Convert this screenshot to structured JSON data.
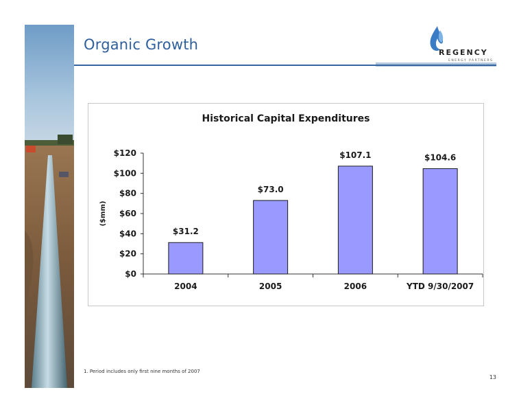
{
  "slide": {
    "title": "Organic Growth",
    "footnote": "1.  Period includes only first nine months of 2007",
    "page_number": "13"
  },
  "logo": {
    "name": "REGENCY",
    "tagline": "ENERGY PARTNERS"
  },
  "colors": {
    "title": "#2e5f9e",
    "rule": "#34659f",
    "bar_fill": "#9999ff",
    "bar_stroke": "#1a1a1a"
  },
  "chart_data": {
    "type": "bar",
    "title": "Historical Capital Expenditures",
    "ylabel": "($mm)",
    "xlabel": "",
    "categories": [
      "2004",
      "2005",
      "2006",
      "YTD 9/30/2007"
    ],
    "values": [
      31.2,
      73.0,
      107.1,
      104.6
    ],
    "data_labels": [
      "$31.2",
      "$73.0",
      "$107.1",
      "$104.6"
    ],
    "ylim": [
      0,
      120
    ],
    "yticks": [
      0,
      20,
      40,
      60,
      80,
      100,
      120
    ],
    "ytick_labels": [
      "$0",
      "$20",
      "$40",
      "$60",
      "$80",
      "$100",
      "$120"
    ],
    "grid": false,
    "legend": "none"
  }
}
